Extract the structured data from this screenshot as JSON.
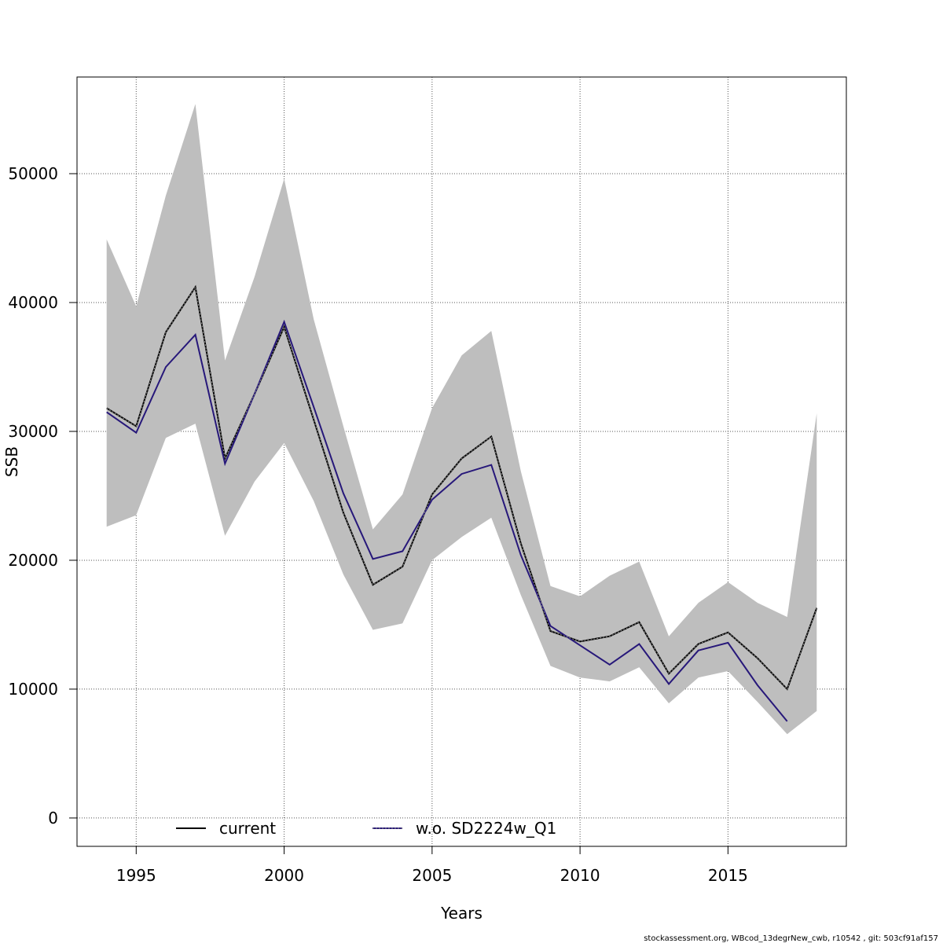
{
  "chart_data": {
    "type": "line",
    "xlabel": "Years",
    "ylabel": "SSB",
    "xlim": [
      1993,
      2019
    ],
    "ylim": [
      -2200,
      57500
    ],
    "x_ticks": [
      1995,
      2000,
      2005,
      2010,
      2015
    ],
    "y_ticks": [
      0,
      10000,
      20000,
      30000,
      40000,
      50000
    ],
    "grid": true,
    "legend_position": "bottom",
    "colors": {
      "band": "#bebebe",
      "current": "#000000",
      "wo": "#27187a",
      "grid": "#555555"
    },
    "x": [
      1994,
      1995,
      1996,
      1997,
      1998,
      1999,
      2000,
      2001,
      2002,
      2003,
      2004,
      2005,
      2006,
      2007,
      2008,
      2009,
      2010,
      2011,
      2012,
      2013,
      2014,
      2015,
      2016,
      2017,
      2018
    ],
    "band": {
      "upper": [
        44900,
        39700,
        48300,
        55400,
        35500,
        42000,
        49600,
        38700,
        30400,
        22400,
        25100,
        31800,
        35900,
        37800,
        26900,
        18000,
        17200,
        18800,
        19900,
        14100,
        16700,
        18300,
        16700,
        15600,
        31400
      ],
      "lower": [
        22600,
        23500,
        29500,
        30600,
        21900,
        26100,
        29100,
        24600,
        18900,
        14600,
        15100,
        20000,
        21800,
        23300,
        17300,
        11800,
        10900,
        10600,
        11700,
        8900,
        10900,
        11400,
        9000,
        6500,
        8300
      ]
    },
    "series": [
      {
        "name": "current",
        "values": [
          31800,
          30400,
          37700,
          41200,
          27900,
          32900,
          38100,
          30900,
          23700,
          18100,
          19500,
          25100,
          27900,
          29600,
          21300,
          14500,
          13700,
          14100,
          15200,
          11200,
          13500,
          14400,
          12400,
          10000,
          16300
        ]
      },
      {
        "name": "w.o. SD2224w_Q1",
        "values": [
          31500,
          29900,
          35000,
          37500,
          27500,
          32900,
          38500,
          31900,
          25200,
          20100,
          20700,
          24700,
          26700,
          27400,
          20400,
          14900,
          13400,
          11900,
          13500,
          10400,
          13000,
          13600,
          10300,
          7500,
          null
        ]
      }
    ]
  },
  "footer": "stockassessment.org, WBcod_13degrNew_cwb, r10542 , git: 503cf91af157"
}
